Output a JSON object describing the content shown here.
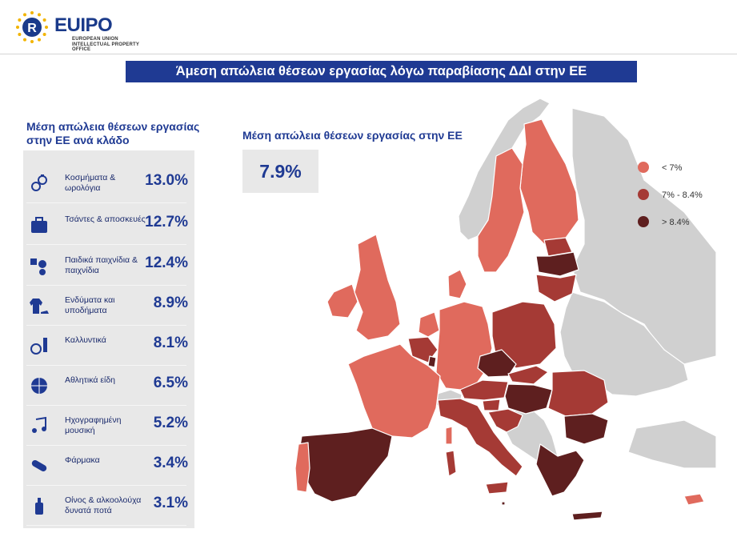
{
  "logo": {
    "brand": "EUIPO",
    "line1": "EUROPEAN UNION",
    "line2": "INTELLECTUAL PROPERTY OFFICE"
  },
  "title": "Άμεση απώλεια θέσεων εργασίας λόγω παραβίασης ΔΔΙ στην ΕΕ",
  "sectors_title": "Μέση απώλεια θέσεων εργασίας στην ΕΕ ανά κλάδο",
  "sectors": [
    {
      "icon": "watch-ring-icon",
      "label": "Κοσμήματα & ωρολόγια",
      "value": "13.0%"
    },
    {
      "icon": "suitcase-icon",
      "label": "Τσάντες & αποσκευές",
      "value": "12.7%"
    },
    {
      "icon": "toys-icon",
      "label": "Παιδικά παιχνίδια & παιχνίδια",
      "value": "12.4%"
    },
    {
      "icon": "clothing-shoe-icon",
      "label": "Ενδύματα και υποδήματα",
      "value": "8.9%"
    },
    {
      "icon": "perfume-icon",
      "label": "Καλλυντικά",
      "value": "8.1%"
    },
    {
      "icon": "basketball-icon",
      "label": "Αθλητικά είδη",
      "value": "6.5%"
    },
    {
      "icon": "music-note-icon",
      "label": "Ηχογραφημένη μουσική",
      "value": "5.2%"
    },
    {
      "icon": "pill-icon",
      "label": "Φάρμακα",
      "value": "3.4%"
    },
    {
      "icon": "wine-bottle-icon",
      "label": "Οίνος & αλκοολούχα δυνατά ποτά",
      "value": "3.1%"
    }
  ],
  "average": {
    "label": "Μέση απώλεια θέσεων εργασίας στην ΕΕ",
    "value": "7.9%"
  },
  "legend": [
    {
      "label": "< 7%",
      "color": "#e06a5d"
    },
    {
      "label": "7% - 8.4%",
      "color": "#a53a35"
    },
    {
      "label": "> 8.4%",
      "color": "#5e1f1f"
    }
  ],
  "map_colors": {
    "low": "#e06a5d",
    "mid": "#a53a35",
    "high": "#5e1f1f",
    "none": "#d0d0d0",
    "stroke": "#ffffff"
  }
}
